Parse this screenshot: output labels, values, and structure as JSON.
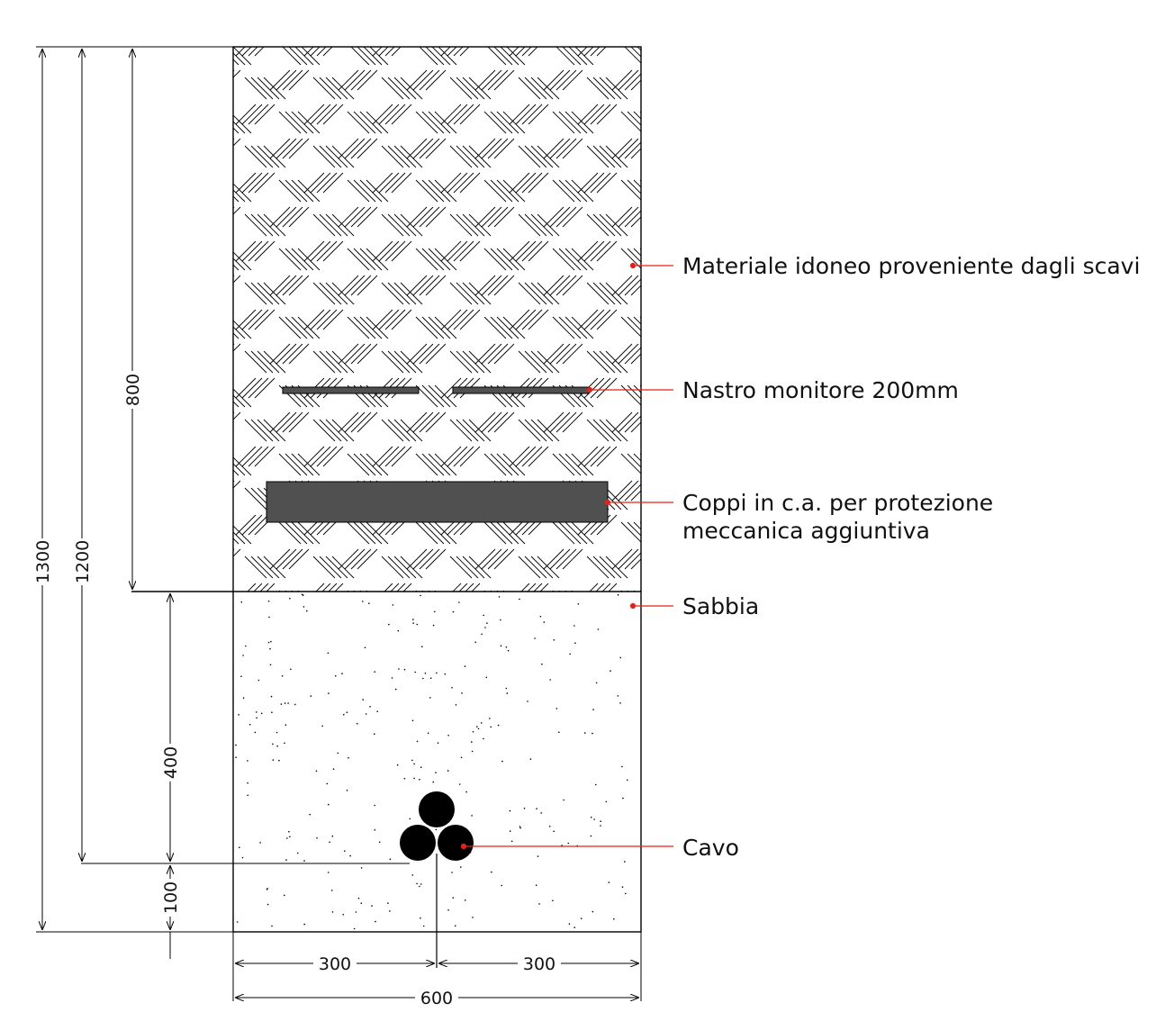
{
  "dimensions": {
    "d1300": "1300",
    "d1200": "1200",
    "d800": "800",
    "d400": "400",
    "d100": "100",
    "d300_left": "300",
    "d300_right": "300",
    "d600": "600"
  },
  "labels": {
    "materiale": "Materiale idoneo proveniente dagli scavi",
    "nastro": "Nastro monitore 200mm",
    "coppi_line1": "Coppi in c.a. per protezione",
    "coppi_line2": "meccanica aggiuntiva",
    "sabbia": "Sabbia",
    "cavo": "Cavo"
  },
  "colors": {
    "line": "#000000",
    "leader": "#e2231a",
    "element_fill": "#505050",
    "cable": "#000000"
  }
}
